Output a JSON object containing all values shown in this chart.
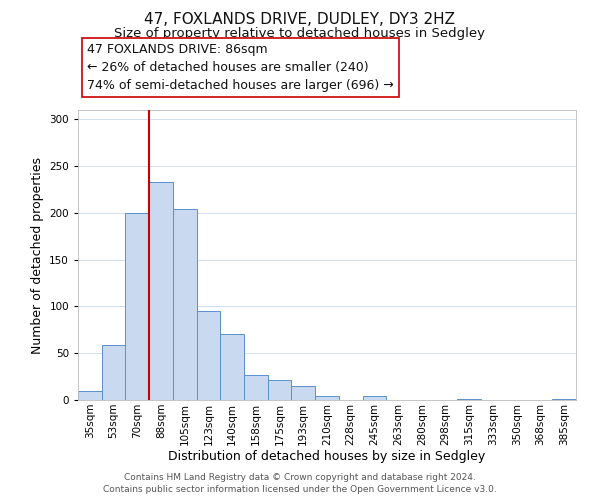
{
  "title": "47, FOXLANDS DRIVE, DUDLEY, DY3 2HZ",
  "subtitle": "Size of property relative to detached houses in Sedgley",
  "xlabel": "Distribution of detached houses by size in Sedgley",
  "ylabel": "Number of detached properties",
  "footer_lines": [
    "Contains HM Land Registry data © Crown copyright and database right 2024.",
    "Contains public sector information licensed under the Open Government Licence v3.0."
  ],
  "bar_labels": [
    "35sqm",
    "53sqm",
    "70sqm",
    "88sqm",
    "105sqm",
    "123sqm",
    "140sqm",
    "158sqm",
    "175sqm",
    "193sqm",
    "210sqm",
    "228sqm",
    "245sqm",
    "263sqm",
    "280sqm",
    "298sqm",
    "315sqm",
    "333sqm",
    "350sqm",
    "368sqm",
    "385sqm"
  ],
  "bar_values": [
    10,
    59,
    200,
    233,
    204,
    95,
    71,
    27,
    21,
    15,
    4,
    0,
    4,
    0,
    0,
    0,
    1,
    0,
    0,
    0,
    1
  ],
  "bar_color": "#c9d9f0",
  "bar_edge_color": "#5b8fcf",
  "vline_x_index": 3,
  "vline_color": "#cc0000",
  "annotation_line1": "47 FOXLANDS DRIVE: 86sqm",
  "annotation_line2": "← 26% of detached houses are smaller (240)",
  "annotation_line3": "74% of semi-detached houses are larger (696) →",
  "ylim": [
    0,
    310
  ],
  "yticks": [
    0,
    50,
    100,
    150,
    200,
    250,
    300
  ],
  "background_color": "#ffffff",
  "grid_color": "#d0dff0",
  "title_fontsize": 11,
  "subtitle_fontsize": 9.5,
  "axis_label_fontsize": 9,
  "tick_fontsize": 7.5,
  "annotation_fontsize": 9,
  "footer_fontsize": 6.5
}
